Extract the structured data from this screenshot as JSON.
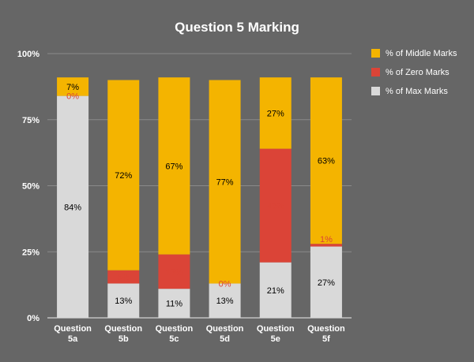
{
  "chart_data": {
    "type": "bar",
    "stacked": true,
    "title": "Question 5 Marking",
    "categories": [
      "Question 5a",
      "Question 5b",
      "Question 5c",
      "Question 5d",
      "Question 5e",
      "Question 5f"
    ],
    "category_lines": [
      [
        "Question",
        "5a"
      ],
      [
        "Question",
        "5b"
      ],
      [
        "Question",
        "5c"
      ],
      [
        "Question",
        "5d"
      ],
      [
        "Question",
        "5e"
      ],
      [
        "Question",
        "5f"
      ]
    ],
    "yticks": [
      "0%",
      "25%",
      "50%",
      "75%",
      "100%"
    ],
    "ylim": [
      0,
      100
    ],
    "grid": true,
    "legend_position": "right",
    "series": [
      {
        "name": "% of Max Marks",
        "color": "#d9d9d9",
        "label_color": "#000000",
        "values": [
          84,
          13,
          11,
          13,
          21,
          27
        ],
        "labels": [
          "84%",
          "13%",
          "11%",
          "13%",
          "21%",
          "27%"
        ]
      },
      {
        "name": "% of Zero Marks",
        "color": "#db4437",
        "label_color": "#db4437",
        "values": [
          0,
          5,
          13,
          0,
          43,
          1
        ],
        "labels": [
          "0%",
          "5%",
          "13%",
          "0%",
          "43%",
          "1%"
        ]
      },
      {
        "name": "% of Middle Marks",
        "color": "#f4b400",
        "label_color": "#000000",
        "values": [
          7,
          72,
          67,
          77,
          27,
          63
        ],
        "labels": [
          "7%",
          "72%",
          "67%",
          "77%",
          "27%",
          "63%"
        ]
      }
    ],
    "legend_order": [
      2,
      1,
      0
    ]
  }
}
